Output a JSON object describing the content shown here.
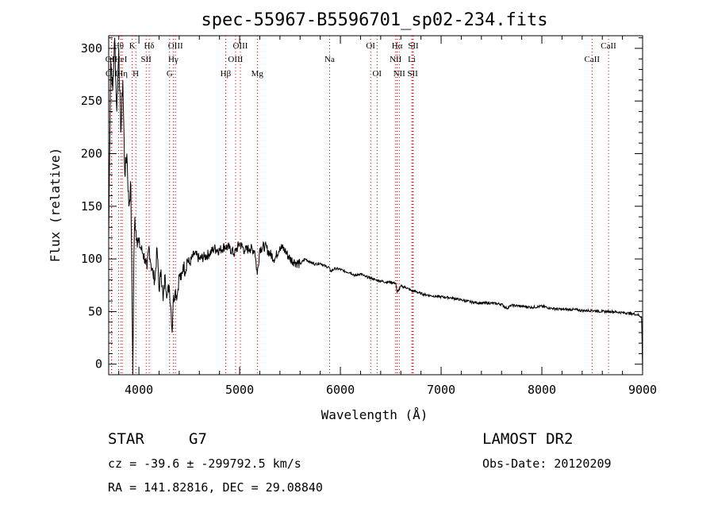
{
  "chart_data": {
    "type": "line",
    "title": "spec-55967-B5596701_sp02-234.fits",
    "xlabel": "Wavelength (Å)",
    "ylabel": "Flux (relative)",
    "xlim": [
      3700,
      9000
    ],
    "ylim": [
      -10,
      312
    ],
    "xticks": [
      4000,
      5000,
      6000,
      7000,
      8000,
      9000
    ],
    "yticks": [
      0,
      50,
      100,
      150,
      200,
      250,
      300
    ],
    "grid": false,
    "series": [
      {
        "color": "#000000",
        "x": [
          3700,
          3720,
          3740,
          3760,
          3780,
          3800,
          3820,
          3840,
          3860,
          3880,
          3900,
          3920,
          3940,
          3950,
          3960,
          3980,
          4000,
          4020,
          4040,
          4060,
          4080,
          4100,
          4120,
          4140,
          4160,
          4180,
          4200,
          4220,
          4240,
          4260,
          4280,
          4300,
          4320,
          4330,
          4340,
          4360,
          4380,
          4400,
          4420,
          4440,
          4460,
          4480,
          4500,
          4550,
          4600,
          4650,
          4700,
          4750,
          4800,
          4850,
          4900,
          4950,
          5000,
          5050,
          5100,
          5150,
          5175,
          5200,
          5250,
          5300,
          5350,
          5400,
          5450,
          5500,
          5550,
          5600,
          5650,
          5700,
          5750,
          5800,
          5850,
          5890,
          5900,
          5950,
          6000,
          6050,
          6100,
          6150,
          6200,
          6250,
          6300,
          6350,
          6400,
          6450,
          6500,
          6550,
          6563,
          6600,
          6650,
          6700,
          6750,
          6800,
          6900,
          7000,
          7100,
          7200,
          7300,
          7400,
          7500,
          7600,
          7650,
          7700,
          7800,
          7900,
          8000,
          8100,
          8200,
          8300,
          8400,
          8500,
          8600,
          8700,
          8800,
          8900,
          8950,
          8990,
          9000
        ],
        "values": [
          120,
          290,
          260,
          310,
          240,
          300,
          220,
          270,
          180,
          200,
          150,
          170,
          -10,
          100,
          140,
          120,
          115,
          110,
          105,
          100,
          90,
          112,
          95,
          85,
          80,
          110,
          70,
          90,
          60,
          85,
          65,
          75,
          50,
          30,
          60,
          70,
          65,
          85,
          80,
          95,
          88,
          100,
          95,
          105,
          100,
          102,
          105,
          110,
          108,
          112,
          110,
          105,
          115,
          108,
          110,
          108,
          85,
          110,
          112,
          105,
          100,
          112,
          108,
          100,
          97,
          95,
          100,
          97,
          95,
          96,
          93,
          92,
          88,
          91,
          90,
          88,
          87,
          84,
          86,
          83,
          82,
          80,
          79,
          78,
          78,
          77,
          68,
          74,
          73,
          70,
          69,
          67,
          65,
          64,
          63,
          61,
          59,
          58,
          58,
          57,
          53,
          56,
          55,
          54,
          55,
          53,
          52,
          52,
          51,
          51,
          50,
          50,
          49,
          48,
          47,
          45,
          -8
        ]
      }
    ],
    "lines": [
      {
        "label": "OII",
        "wl": 3727,
        "row": 1
      },
      {
        "label": "OII",
        "wl": 3729,
        "row": 2
      },
      {
        "label": "Hθ",
        "wl": 3798,
        "row": 0
      },
      {
        "label": "HeI",
        "wl": 3820,
        "row": 1
      },
      {
        "label": "Hη",
        "wl": 3835,
        "row": 2
      },
      {
        "label": "K",
        "wl": 3934,
        "row": 0
      },
      {
        "label": "SII",
        "wl": 4072,
        "row": 1
      },
      {
        "label": "H",
        "wl": 3969,
        "row": 2
      },
      {
        "label": "Hδ",
        "wl": 4102,
        "row": 0
      },
      {
        "label": "OIII",
        "wl": 4363,
        "row": 0
      },
      {
        "label": "Hγ",
        "wl": 4341,
        "row": 1
      },
      {
        "label": "G",
        "wl": 4305,
        "row": 2
      },
      {
        "label": "OIII",
        "wl": 5007,
        "row": 0
      },
      {
        "label": "OIII",
        "wl": 4959,
        "row": 1
      },
      {
        "label": "Hβ",
        "wl": 4861,
        "row": 2
      },
      {
        "label": "Mg",
        "wl": 5175,
        "row": 2
      },
      {
        "label": "Na",
        "wl": 5893,
        "row": 1
      },
      {
        "label": "OI",
        "wl": 6300,
        "row": 0
      },
      {
        "label": "OI",
        "wl": 6364,
        "row": 2
      },
      {
        "label": "Hα",
        "wl": 6563,
        "row": 0
      },
      {
        "label": "SII",
        "wl": 6724,
        "row": 0
      },
      {
        "label": "NII",
        "wl": 6548,
        "row": 1
      },
      {
        "label": "Li",
        "wl": 6708,
        "row": 1
      },
      {
        "label": "NII",
        "wl": 6584,
        "row": 2
      },
      {
        "label": "SII",
        "wl": 6717,
        "row": 2
      },
      {
        "label": "CaII",
        "wl": 8662,
        "row": 0
      },
      {
        "label": "CaII",
        "wl": 8498,
        "row": 1
      }
    ]
  },
  "info": {
    "object_class": "STAR",
    "subclass": "G7",
    "cz": "cz = -39.6 ± -299792.5 km/s",
    "radec": "RA = 141.82816, DEC =  29.08840",
    "survey": "LAMOST DR2",
    "obs_date": "Obs-Date: 20120209"
  }
}
